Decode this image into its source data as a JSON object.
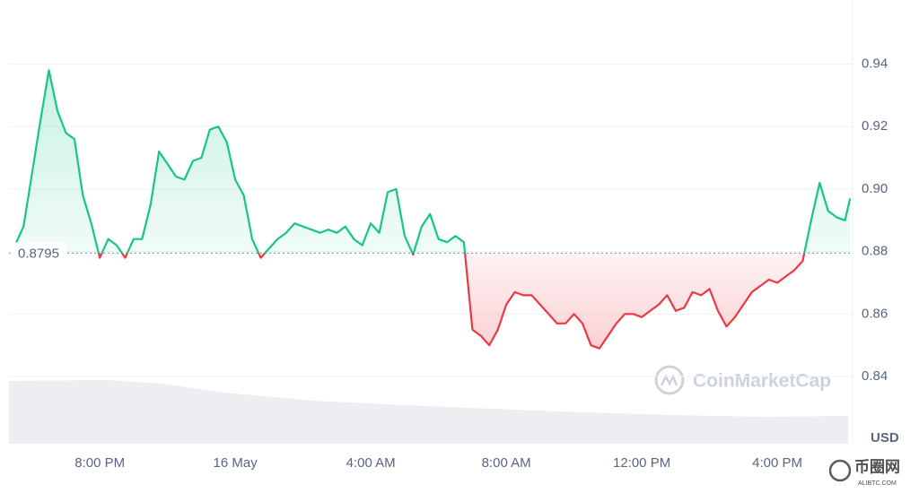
{
  "chart_data": {
    "type": "line",
    "x": [
      -2.5,
      -2.25,
      -2,
      -1.75,
      -1.5,
      -1.25,
      -1,
      -0.75,
      -0.5,
      -0.25,
      0,
      0.25,
      0.5,
      0.75,
      1,
      1.25,
      1.5,
      1.75,
      2,
      2.25,
      2.5,
      2.75,
      3,
      3.25,
      3.5,
      3.75,
      4,
      4.25,
      4.5,
      4.75,
      5,
      5.25,
      5.5,
      5.75,
      6,
      6.25,
      6.5,
      6.75,
      7,
      7.25,
      7.5,
      7.75,
      8,
      8.25,
      8.5,
      8.75,
      9,
      9.25,
      9.5,
      9.75,
      10,
      10.25,
      10.5,
      10.75,
      11,
      11.25,
      11.5,
      11.75,
      12,
      12.25,
      12.5,
      12.75,
      13,
      13.25,
      13.5,
      13.75,
      14,
      14.25,
      14.5,
      14.75,
      15,
      15.25,
      15.5,
      15.75,
      16,
      16.25,
      16.5,
      16.75,
      17,
      17.25,
      17.5,
      17.75,
      18,
      18.25,
      18.5,
      18.75,
      19,
      19.25,
      19.5,
      19.75,
      20,
      20.25,
      20.5,
      20.75,
      21,
      21.25,
      21.5,
      21.75,
      22,
      22.15
    ],
    "values": [
      0.882,
      0.888,
      0.905,
      0.922,
      0.938,
      0.925,
      0.918,
      0.916,
      0.898,
      0.889,
      0.878,
      0.884,
      0.882,
      0.878,
      0.884,
      0.884,
      0.895,
      0.912,
      0.908,
      0.904,
      0.903,
      0.909,
      0.91,
      0.919,
      0.92,
      0.915,
      0.903,
      0.898,
      0.884,
      0.878,
      0.881,
      0.884,
      0.886,
      0.889,
      0.888,
      0.887,
      0.886,
      0.887,
      0.886,
      0.888,
      0.884,
      0.882,
      0.889,
      0.886,
      0.899,
      0.9,
      0.885,
      0.879,
      0.888,
      0.892,
      0.884,
      0.883,
      0.885,
      0.883,
      0.855,
      0.853,
      0.85,
      0.855,
      0.863,
      0.867,
      0.866,
      0.866,
      0.863,
      0.86,
      0.857,
      0.857,
      0.86,
      0.857,
      0.85,
      0.849,
      0.853,
      0.857,
      0.86,
      0.86,
      0.859,
      0.861,
      0.863,
      0.866,
      0.861,
      0.862,
      0.867,
      0.866,
      0.868,
      0.861,
      0.856,
      0.859,
      0.863,
      0.867,
      0.869,
      0.871,
      0.87,
      0.872,
      0.874,
      0.877,
      0.89,
      0.902,
      0.893,
      0.891,
      0.89,
      0.897
    ],
    "baseline": 0.8795,
    "up_color": "#16c784",
    "down_color": "#ea3943",
    "xlim": [
      -2.68,
      22.17
    ],
    "xticks": [
      {
        "value": 0,
        "label": "8:00 PM"
      },
      {
        "value": 4,
        "label": "16 May"
      },
      {
        "value": 8,
        "label": "4:00 AM"
      },
      {
        "value": 12,
        "label": "8:00 AM"
      },
      {
        "value": 16,
        "label": "12:00 PM"
      },
      {
        "value": 20,
        "label": "4:00 PM"
      }
    ],
    "ylim": [
      0.8185,
      0.9605
    ],
    "yticks": [
      0.84,
      0.86,
      0.88,
      {
        "value": 0.9,
        "label": "0.90"
      },
      0.92,
      0.94
    ],
    "y_unit": "USD",
    "grid": true,
    "watermark": "CoinMarketCap",
    "site_mark": {
      "name": "币圈网",
      "url": "ALIBTC.COM"
    }
  }
}
